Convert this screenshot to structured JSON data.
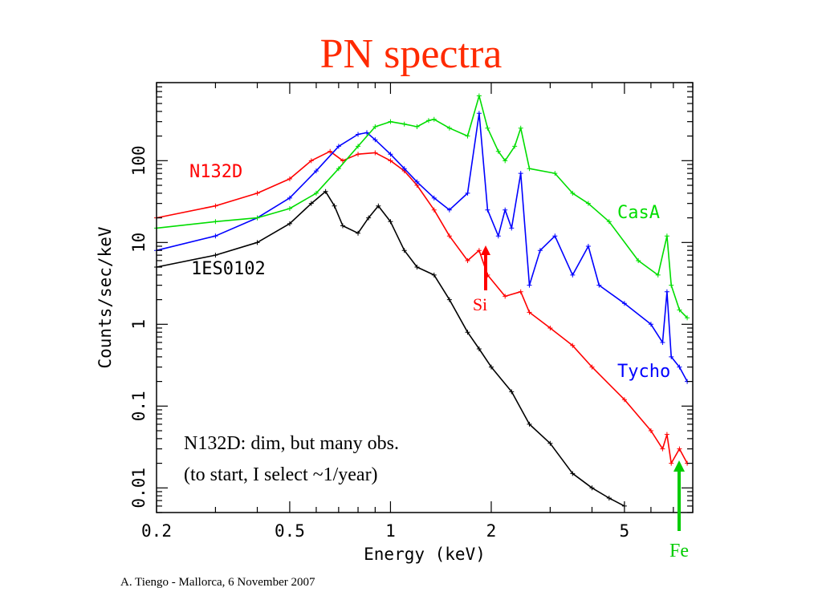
{
  "slide": {
    "title": "PN spectra",
    "title_color": "#ff2a00",
    "footer": "A. Tiengo - Mallorca,  6 November 2007",
    "note_lines": [
      "N132D: dim, but many obs.",
      "(to start, I select ~1/year)"
    ]
  },
  "chart_data": {
    "type": "line",
    "title": "",
    "xlabel": "Energy (keV)",
    "ylabel": "Counts/sec/keV",
    "x_scale": "log",
    "y_scale": "log",
    "xlim": [
      0.2,
      8.0
    ],
    "ylim": [
      0.005,
      900
    ],
    "x_ticks": [
      {
        "value": 0.2,
        "label": "0.2"
      },
      {
        "value": 0.5,
        "label": "0.5"
      },
      {
        "value": 1,
        "label": "1"
      },
      {
        "value": 2,
        "label": "2"
      },
      {
        "value": 5,
        "label": "5"
      }
    ],
    "y_ticks": [
      {
        "value": 0.01,
        "label": "0.01"
      },
      {
        "value": 0.1,
        "label": "0.1"
      },
      {
        "value": 1,
        "label": "1"
      },
      {
        "value": 10,
        "label": "10"
      },
      {
        "value": 100,
        "label": "100"
      }
    ],
    "grid": false,
    "series": [
      {
        "name": "N132D",
        "color": "#ff0000",
        "x": [
          0.2,
          0.3,
          0.4,
          0.5,
          0.58,
          0.66,
          0.72,
          0.8,
          0.9,
          1.0,
          1.1,
          1.2,
          1.35,
          1.5,
          1.7,
          1.84,
          1.95,
          2.2,
          2.45,
          2.6,
          3.0,
          3.5,
          4.0,
          5.0,
          6.0,
          6.5,
          6.7,
          6.9,
          7.3,
          7.7
        ],
        "y": [
          20,
          28,
          40,
          60,
          100,
          130,
          100,
          120,
          125,
          100,
          75,
          50,
          25,
          12,
          6,
          8,
          4,
          2.2,
          2.5,
          1.4,
          0.9,
          0.55,
          0.3,
          0.12,
          0.05,
          0.03,
          0.045,
          0.02,
          0.03,
          0.02
        ]
      },
      {
        "name": "Tycho",
        "color": "#0000ff",
        "x": [
          0.2,
          0.3,
          0.4,
          0.5,
          0.6,
          0.7,
          0.8,
          0.85,
          0.9,
          1.0,
          1.1,
          1.2,
          1.35,
          1.5,
          1.7,
          1.84,
          1.95,
          2.1,
          2.2,
          2.3,
          2.45,
          2.6,
          2.8,
          3.1,
          3.5,
          3.9,
          4.2,
          5.0,
          6.0,
          6.5,
          6.7,
          6.9,
          7.3,
          7.7
        ],
        "y": [
          8,
          12,
          20,
          35,
          75,
          150,
          210,
          220,
          180,
          120,
          80,
          55,
          35,
          25,
          40,
          380,
          25,
          12,
          25,
          15,
          70,
          3,
          8,
          12,
          4,
          9,
          3,
          1.8,
          1,
          0.6,
          2.5,
          0.4,
          0.3,
          0.2
        ]
      },
      {
        "name": "CasA",
        "color": "#00dd00",
        "x": [
          0.2,
          0.3,
          0.4,
          0.5,
          0.6,
          0.7,
          0.8,
          0.9,
          1.0,
          1.1,
          1.2,
          1.3,
          1.35,
          1.5,
          1.7,
          1.84,
          1.95,
          2.1,
          2.2,
          2.35,
          2.45,
          2.6,
          3.1,
          3.5,
          3.9,
          4.5,
          5.5,
          6.3,
          6.7,
          6.9,
          7.3,
          7.7
        ],
        "y": [
          15,
          18,
          20,
          26,
          40,
          80,
          150,
          260,
          300,
          280,
          260,
          310,
          320,
          250,
          200,
          620,
          250,
          130,
          100,
          150,
          250,
          80,
          70,
          40,
          30,
          18,
          6,
          4,
          12,
          3,
          1.5,
          1.2
        ]
      },
      {
        "name": "1ES0102",
        "color": "#000000",
        "x": [
          0.2,
          0.3,
          0.4,
          0.5,
          0.58,
          0.64,
          0.68,
          0.72,
          0.8,
          0.86,
          0.92,
          1.0,
          1.1,
          1.2,
          1.35,
          1.5,
          1.7,
          1.84,
          2.0,
          2.3,
          2.6,
          3.0,
          3.5,
          4.0,
          4.5,
          5.0
        ],
        "y": [
          5,
          7,
          10,
          17,
          30,
          42,
          28,
          16,
          13,
          20,
          28,
          18,
          8,
          5,
          4,
          2,
          0.8,
          0.5,
          0.3,
          0.15,
          0.06,
          0.035,
          0.015,
          0.01,
          0.0075,
          0.006
        ]
      }
    ],
    "annotations": [
      {
        "text": "N132D",
        "color": "#ff0000"
      },
      {
        "text": "CasA",
        "color": "#00dd00"
      },
      {
        "text": "Tycho",
        "color": "#0000ff"
      },
      {
        "text": "1ES0102",
        "color": "#000000"
      },
      {
        "text": "Si",
        "color": "#ff0000",
        "arrow_x": 1.84
      },
      {
        "text": "Fe",
        "color": "#00cc00",
        "arrow_x": 6.7
      }
    ]
  }
}
